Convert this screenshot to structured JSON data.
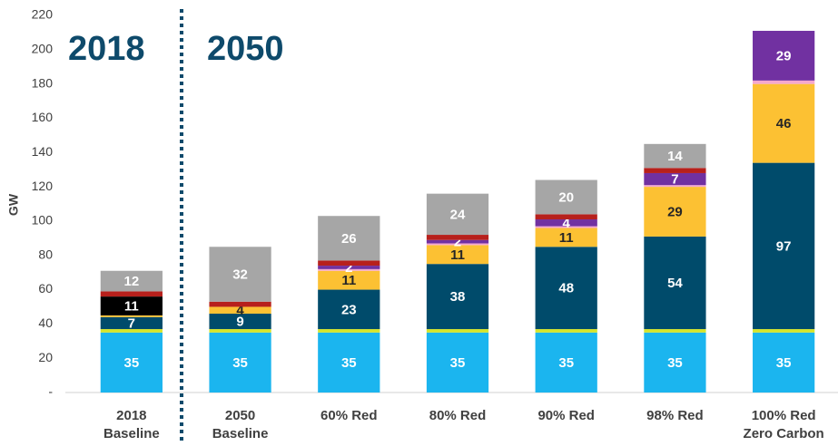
{
  "chart_data": {
    "type": "stacked_bar",
    "annotations": [
      "2018",
      "2050"
    ],
    "ylabel": "GW",
    "categories": [
      [
        "2018",
        "Baseline"
      ],
      [
        "2050",
        "Baseline"
      ],
      [
        "60% Red"
      ],
      [
        "80% Red"
      ],
      [
        "90% Red"
      ],
      [
        "98% Red"
      ],
      [
        "100% Red",
        "Zero Carbon"
      ]
    ],
    "series": [
      {
        "color": "#1bb5ef",
        "values": [
          35,
          35,
          35,
          35,
          35,
          35,
          35
        ],
        "value_labels": [
          "35",
          "35",
          "35",
          "35",
          "35",
          "35",
          "35"
        ]
      },
      {
        "color": "#d6e52b",
        "values": [
          2,
          2,
          2,
          2,
          2,
          2,
          2
        ],
        "value_labels": [
          null,
          null,
          null,
          null,
          null,
          null,
          null
        ]
      },
      {
        "color": "#004b6b",
        "values": [
          7,
          9,
          23,
          38,
          48,
          54,
          97
        ],
        "value_labels": [
          "7",
          "9",
          "23",
          "38",
          "48",
          "54",
          "97"
        ]
      },
      {
        "color": "#fcc133",
        "values": [
          1,
          4,
          11,
          11,
          11,
          29,
          46
        ],
        "value_labels": [
          null,
          "4",
          "11",
          "11",
          "11",
          "29",
          "46"
        ]
      },
      {
        "color": "#f5a8cf",
        "values": [
          0,
          0,
          1,
          1,
          1,
          1,
          2
        ],
        "value_labels": [
          null,
          null,
          null,
          null,
          null,
          null,
          null
        ]
      },
      {
        "color": "#000000",
        "values": [
          11,
          0,
          0,
          0,
          0,
          0,
          0
        ],
        "value_labels": [
          "11",
          null,
          null,
          null,
          null,
          null,
          null
        ]
      },
      {
        "color": "#7131a1",
        "values": [
          0,
          0,
          2,
          2,
          4,
          7,
          29
        ],
        "value_labels": [
          null,
          null,
          "2",
          "2",
          "4",
          "7",
          "29"
        ]
      },
      {
        "color": "#b7201c",
        "values": [
          3,
          3,
          3,
          3,
          3,
          3,
          0
        ],
        "value_labels": [
          null,
          null,
          null,
          null,
          null,
          null,
          null
        ]
      },
      {
        "color": "#a6a6a6",
        "values": [
          12,
          32,
          26,
          24,
          20,
          14,
          0
        ],
        "value_labels": [
          "12",
          "32",
          "26",
          "24",
          "20",
          "14",
          null
        ]
      }
    ],
    "ylim": [
      0,
      220
    ],
    "yticks": [
      {
        "value": 0,
        "label": "-"
      },
      20,
      40,
      60,
      80,
      100,
      120,
      140,
      160,
      180,
      200,
      220
    ],
    "grid": false
  }
}
